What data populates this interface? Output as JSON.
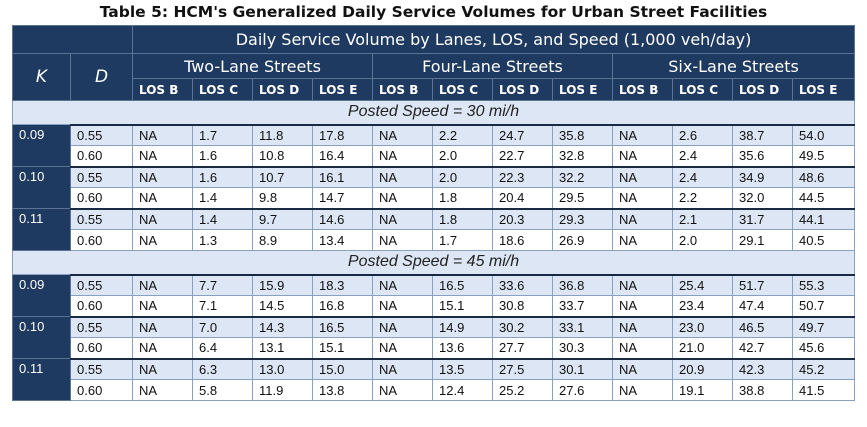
{
  "title": "Table 5: HCM's Generalized Daily Service Volumes for Urban Street Facilities",
  "header": {
    "k_label": "K",
    "d_label": "D",
    "span_label": "Daily Service Volume by Lanes, LOS, and Speed (1,000 veh/day)",
    "groups": [
      "Two-Lane Streets",
      "Four-Lane Streets",
      "Six-Lane Streets"
    ],
    "los": [
      "LOS B",
      "LOS C",
      "LOS D",
      "LOS E",
      "LOS B",
      "LOS C",
      "LOS D",
      "LOS E",
      "LOS B",
      "LOS C",
      "LOS D",
      "LOS E"
    ]
  },
  "sections": [
    {
      "label": "Posted Speed = 30 mi/h",
      "groups": [
        {
          "k": "0.09",
          "rows": [
            {
              "d": "0.55",
              "v": [
                "NA",
                "1.7",
                "11.8",
                "17.8",
                "NA",
                "2.2",
                "24.7",
                "35.8",
                "NA",
                "2.6",
                "38.7",
                "54.0"
              ]
            },
            {
              "d": "0.60",
              "v": [
                "NA",
                "1.6",
                "10.8",
                "16.4",
                "NA",
                "2.0",
                "22.7",
                "32.8",
                "NA",
                "2.4",
                "35.6",
                "49.5"
              ]
            }
          ]
        },
        {
          "k": "0.10",
          "rows": [
            {
              "d": "0.55",
              "v": [
                "NA",
                "1.6",
                "10.7",
                "16.1",
                "NA",
                "2.0",
                "22.3",
                "32.2",
                "NA",
                "2.4",
                "34.9",
                "48.6"
              ]
            },
            {
              "d": "0.60",
              "v": [
                "NA",
                "1.4",
                "9.8",
                "14.7",
                "NA",
                "1.8",
                "20.4",
                "29.5",
                "NA",
                "2.2",
                "32.0",
                "44.5"
              ]
            }
          ]
        },
        {
          "k": "0.11",
          "rows": [
            {
              "d": "0.55",
              "v": [
                "NA",
                "1.4",
                "9.7",
                "14.6",
                "NA",
                "1.8",
                "20.3",
                "29.3",
                "NA",
                "2.1",
                "31.7",
                "44.1"
              ]
            },
            {
              "d": "0.60",
              "v": [
                "NA",
                "1.3",
                "8.9",
                "13.4",
                "NA",
                "1.7",
                "18.6",
                "26.9",
                "NA",
                "2.0",
                "29.1",
                "40.5"
              ]
            }
          ]
        }
      ]
    },
    {
      "label": "Posted Speed = 45 mi/h",
      "groups": [
        {
          "k": "0.09",
          "rows": [
            {
              "d": "0.55",
              "v": [
                "NA",
                "7.7",
                "15.9",
                "18.3",
                "NA",
                "16.5",
                "33.6",
                "36.8",
                "NA",
                "25.4",
                "51.7",
                "55.3"
              ]
            },
            {
              "d": "0.60",
              "v": [
                "NA",
                "7.1",
                "14.5",
                "16.8",
                "NA",
                "15.1",
                "30.8",
                "33.7",
                "NA",
                "23.4",
                "47.4",
                "50.7"
              ]
            }
          ]
        },
        {
          "k": "0.10",
          "rows": [
            {
              "d": "0.55",
              "v": [
                "NA",
                "7.0",
                "14.3",
                "16.5",
                "NA",
                "14.9",
                "30.2",
                "33.1",
                "NA",
                "23.0",
                "46.5",
                "49.7"
              ]
            },
            {
              "d": "0.60",
              "v": [
                "NA",
                "6.4",
                "13.1",
                "15.1",
                "NA",
                "13.6",
                "27.7",
                "30.3",
                "NA",
                "21.0",
                "42.7",
                "45.6"
              ]
            }
          ]
        },
        {
          "k": "0.11",
          "rows": [
            {
              "d": "0.55",
              "v": [
                "NA",
                "6.3",
                "13.0",
                "15.0",
                "NA",
                "13.5",
                "27.5",
                "30.1",
                "NA",
                "20.9",
                "42.3",
                "45.2"
              ]
            },
            {
              "d": "0.60",
              "v": [
                "NA",
                "5.8",
                "11.9",
                "13.8",
                "NA",
                "12.4",
                "25.2",
                "27.6",
                "NA",
                "19.1",
                "38.8",
                "41.5"
              ]
            }
          ]
        }
      ]
    }
  ]
}
